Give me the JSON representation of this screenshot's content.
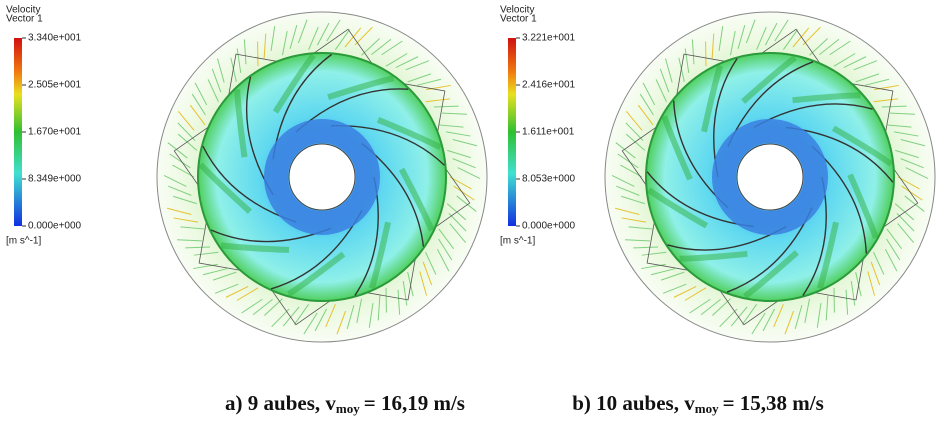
{
  "panels": [
    {
      "legend": {
        "title": [
          "Velocity",
          "Vector 1"
        ],
        "ticks": [
          "3.340e+001",
          "2.505e+001",
          "1.670e+001",
          "8.349e+000",
          "0.000e+000"
        ],
        "unit": "[m s^-1]"
      },
      "caption": {
        "label": "a) 9 aubes, v",
        "subscript": "moy",
        "value": "= 16,19  m/s"
      }
    },
    {
      "legend": {
        "title": [
          "Velocity",
          "Vector 1"
        ],
        "ticks": [
          "3.221e+001",
          "2.416e+001",
          "1.611e+001",
          "8.053e+000",
          "0.000e+000"
        ],
        "unit": "[m s^-1]"
      },
      "caption": {
        "label": "b) 10 aubes, v",
        "subscript": "moy",
        "value": "= 15,38 m/s"
      }
    }
  ]
}
